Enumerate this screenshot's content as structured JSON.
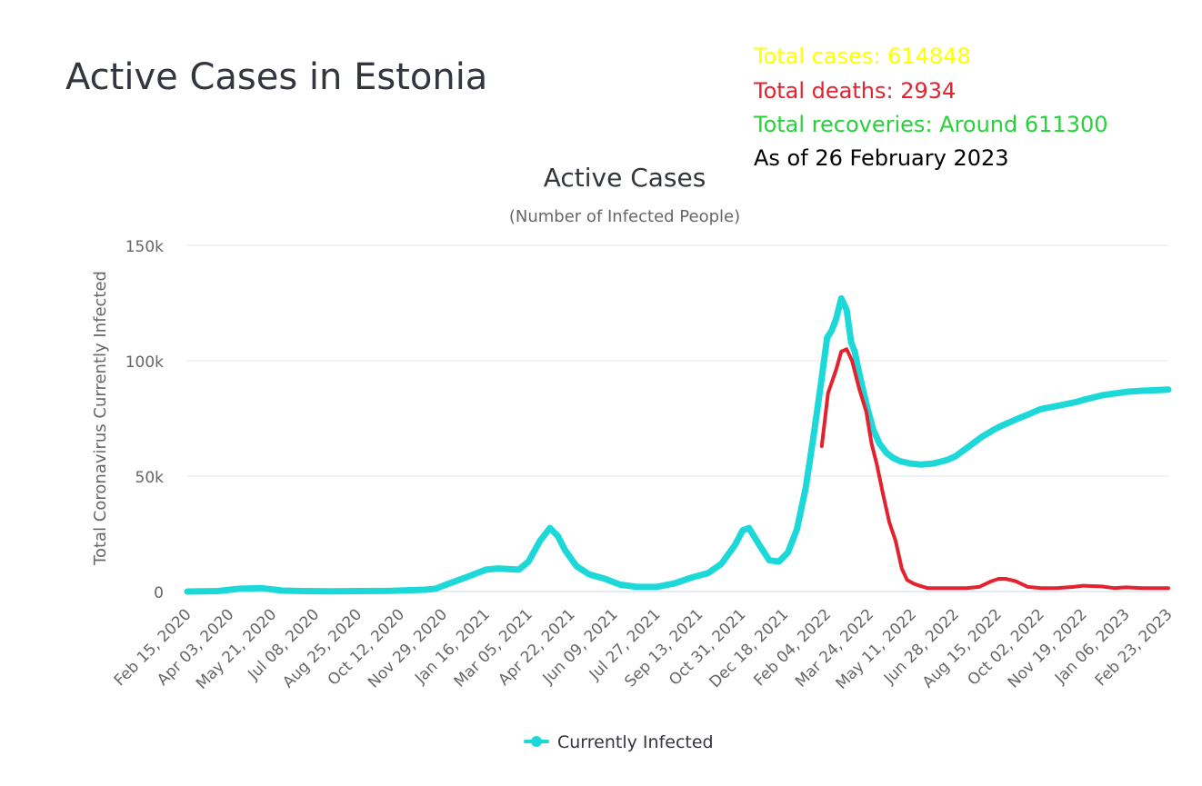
{
  "page": {
    "title": "Active Cases in Estonia"
  },
  "stats": {
    "total_cases": "Total cases: 614848",
    "total_deaths": "Total deaths: 2934",
    "total_recoveries": "Total recoveries: Around 611300",
    "as_of": "As of 26 February 2023",
    "colors": {
      "cases": "#ffff00",
      "deaths": "#e3222f",
      "recoveries": "#26d13a",
      "as_of": "#000000"
    }
  },
  "chart_data": {
    "type": "line",
    "title": "Active Cases",
    "subtitle": "(Number of Infected People)",
    "ylabel": "Total Coronavirus Currently Infected",
    "xlabel": "",
    "ylim": [
      0,
      150000
    ],
    "yticks": [
      0,
      50000,
      100000,
      150000
    ],
    "ytick_labels": [
      "0",
      "50k",
      "100k",
      "150k"
    ],
    "xlim": [
      "2020-02-15",
      "2023-02-23"
    ],
    "xtick_labels": [
      "Feb 15, 2020",
      "Apr 03, 2020",
      "May 21, 2020",
      "Jul 08, 2020",
      "Aug 25, 2020",
      "Oct 12, 2020",
      "Nov 29, 2020",
      "Jan 16, 2021",
      "Mar 05, 2021",
      "Apr 22, 2021",
      "Jun 09, 2021",
      "Jul 27, 2021",
      "Sep 13, 2021",
      "Oct 31, 2021",
      "Dec 18, 2021",
      "Feb 04, 2022",
      "Mar 24, 2022",
      "May 11, 2022",
      "Jun 28, 2022",
      "Aug 15, 2022",
      "Oct 02, 2022",
      "Nov 19, 2022",
      "Jan 06, 2023",
      "Feb 23, 2023"
    ],
    "grid": true,
    "legend_position": "bottom",
    "series": [
      {
        "name": "Currently Infected",
        "color": "#1dd8d8",
        "x": [
          "2020-02-15",
          "2020-03-20",
          "2020-04-13",
          "2020-05-08",
          "2020-06-01",
          "2020-06-26",
          "2020-07-25",
          "2020-08-25",
          "2020-10-01",
          "2020-11-08",
          "2020-11-20",
          "2020-12-08",
          "2020-12-27",
          "2021-01-16",
          "2021-01-30",
          "2021-02-22",
          "2021-03-05",
          "2021-03-18",
          "2021-03-29",
          "2021-04-07",
          "2021-04-15",
          "2021-04-28",
          "2021-05-12",
          "2021-05-30",
          "2021-06-16",
          "2021-07-05",
          "2021-07-27",
          "2021-08-16",
          "2021-09-04",
          "2021-09-23",
          "2021-10-08",
          "2021-10-23",
          "2021-11-01",
          "2021-11-08",
          "2021-11-20",
          "2021-12-01",
          "2021-12-12",
          "2021-12-22",
          "2022-01-01",
          "2022-01-11",
          "2022-01-20",
          "2022-01-28",
          "2022-02-04",
          "2022-02-09",
          "2022-02-14",
          "2022-02-20",
          "2022-02-26",
          "2022-03-03",
          "2022-03-07",
          "2022-03-13",
          "2022-03-21",
          "2022-03-28",
          "2022-04-04",
          "2022-04-12",
          "2022-04-19",
          "2022-04-27",
          "2022-05-08",
          "2022-05-21",
          "2022-06-04",
          "2022-06-19",
          "2022-06-28",
          "2022-07-14",
          "2022-07-28",
          "2022-08-10",
          "2022-08-15",
          "2022-08-23",
          "2022-09-04",
          "2022-09-20",
          "2022-10-02",
          "2022-10-22",
          "2022-11-10",
          "2022-11-19",
          "2022-12-10",
          "2023-01-06",
          "2023-01-25",
          "2023-02-23"
        ],
        "y": [
          0,
          200,
          1200,
          1500,
          400,
          200,
          100,
          200,
          300,
          800,
          1200,
          3800,
          6500,
          9500,
          10000,
          9500,
          13000,
          22000,
          27500,
          24000,
          18000,
          11000,
          7500,
          5500,
          3000,
          2000,
          2000,
          3500,
          6000,
          8000,
          12000,
          20000,
          26500,
          27500,
          20000,
          13500,
          13000,
          17000,
          27000,
          45000,
          68000,
          90000,
          110000,
          113000,
          118000,
          127000,
          122000,
          108000,
          104000,
          93000,
          80000,
          70000,
          64000,
          60000,
          58000,
          56500,
          55500,
          55000,
          55500,
          57000,
          58500,
          63000,
          67000,
          70000,
          71000,
          72500,
          74500,
          77000,
          79000,
          80500,
          82000,
          83000,
          85000,
          86500,
          87000,
          87500
        ]
      },
      {
        "name": "",
        "color": "#e3222f",
        "x": [
          "2022-01-29",
          "2022-02-05",
          "2022-02-14",
          "2022-02-20",
          "2022-02-26",
          "2022-03-04",
          "2022-03-12",
          "2022-03-20",
          "2022-03-26",
          "2022-04-01",
          "2022-04-08",
          "2022-04-15",
          "2022-04-22",
          "2022-04-29",
          "2022-05-05",
          "2022-05-12",
          "2022-05-19",
          "2022-05-28",
          "2022-06-11",
          "2022-06-27",
          "2022-07-11",
          "2022-07-25",
          "2022-08-08",
          "2022-08-16",
          "2022-08-24",
          "2022-09-04",
          "2022-09-18",
          "2022-10-02",
          "2022-10-20",
          "2022-11-08",
          "2022-11-19",
          "2022-12-10",
          "2022-12-24",
          "2023-01-06",
          "2023-01-25",
          "2023-02-23"
        ],
        "y": [
          63000,
          86000,
          96000,
          104000,
          105000,
          100000,
          88000,
          78000,
          64000,
          55000,
          42000,
          30000,
          22000,
          10000,
          5000,
          3500,
          2500,
          1500,
          1500,
          1500,
          1500,
          2000,
          4500,
          5500,
          5500,
          4500,
          2000,
          1500,
          1500,
          2000,
          2500,
          2200,
          1500,
          1800,
          1500,
          1500
        ]
      }
    ]
  }
}
